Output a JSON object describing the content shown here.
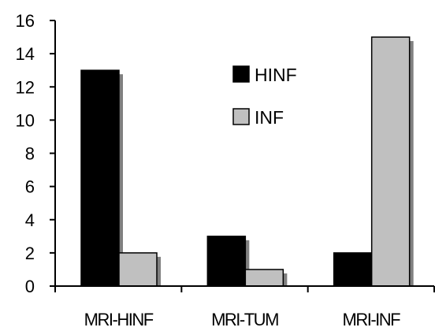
{
  "chart_data": {
    "type": "bar",
    "title": "",
    "xlabel": "",
    "ylabel": "",
    "categories": [
      "MRI-HINF",
      "MRI-TUM",
      "MRI-INF"
    ],
    "series": [
      {
        "name": "HINF",
        "values": [
          13,
          3,
          2
        ],
        "color": "#000000"
      },
      {
        "name": "INF",
        "values": [
          2,
          1,
          15
        ],
        "color": "#c0c0c0"
      }
    ],
    "ylim": [
      0,
      16
    ],
    "yticks": [
      0,
      2,
      4,
      6,
      8,
      10,
      12,
      14,
      16
    ],
    "grid": false,
    "legend_position": "upper-middle",
    "bar_shadow_color": "#808080"
  }
}
